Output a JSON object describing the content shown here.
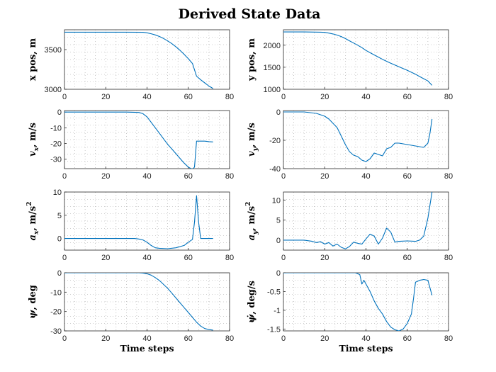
{
  "figure": {
    "title": "Derived State Data"
  },
  "chart_data": [
    {
      "id": "xpos",
      "type": "line",
      "ylabel": "x pos, m",
      "xlabel": "",
      "xlim": [
        0,
        80
      ],
      "ylim": [
        3000,
        3750
      ],
      "xticks": [
        0,
        20,
        40,
        60,
        80
      ],
      "yticks": [
        3000,
        3500
      ],
      "grid": true,
      "series": [
        {
          "x": [
            0,
            10,
            20,
            30,
            38,
            40,
            42,
            44,
            46,
            48,
            50,
            52,
            54,
            56,
            58,
            60,
            62,
            64,
            66,
            68,
            70,
            72
          ],
          "y": [
            3720,
            3720,
            3720,
            3720,
            3718,
            3712,
            3700,
            3685,
            3665,
            3640,
            3610,
            3575,
            3535,
            3490,
            3440,
            3385,
            3325,
            3165,
            3120,
            3080,
            3040,
            3010
          ]
        }
      ]
    },
    {
      "id": "ypos",
      "type": "line",
      "ylabel": "y pos, m",
      "xlabel": "",
      "xlim": [
        0,
        80
      ],
      "ylim": [
        1000,
        2350
      ],
      "xticks": [
        0,
        20,
        40,
        60,
        80
      ],
      "yticks": [
        1000,
        1500,
        2000
      ],
      "grid": true,
      "series": [
        {
          "x": [
            0,
            10,
            18,
            20,
            22,
            24,
            26,
            28,
            30,
            32,
            34,
            36,
            38,
            40,
            42,
            44,
            46,
            48,
            50,
            52,
            54,
            56,
            58,
            60,
            62,
            64,
            66,
            68,
            70,
            72
          ],
          "y": [
            2300,
            2300,
            2295,
            2290,
            2275,
            2255,
            2230,
            2195,
            2150,
            2100,
            2050,
            2000,
            1945,
            1880,
            1830,
            1780,
            1730,
            1680,
            1635,
            1590,
            1550,
            1510,
            1470,
            1430,
            1385,
            1340,
            1290,
            1240,
            1190,
            1090
          ]
        }
      ]
    },
    {
      "id": "vx",
      "type": "line",
      "ylabel": "v_x, m/s",
      "ylabel_var": "v",
      "ylabel_sub": "x",
      "ylabel_unit": ", m/s",
      "xlabel": "",
      "xlim": [
        0,
        80
      ],
      "ylim": [
        -36,
        1
      ],
      "xticks": [
        0,
        20,
        40,
        60,
        80
      ],
      "yticks": [
        -30,
        -20,
        -10,
        0
      ],
      "grid": true,
      "series": [
        {
          "x": [
            0,
            10,
            20,
            30,
            36,
            38,
            40,
            42,
            44,
            46,
            48,
            50,
            52,
            54,
            56,
            58,
            60,
            62,
            63,
            64,
            66,
            68,
            70,
            72
          ],
          "y": [
            0,
            0,
            0,
            0,
            -0.2,
            -1,
            -3,
            -6.5,
            -10,
            -13.5,
            -17,
            -20.5,
            -23.5,
            -26.5,
            -29.5,
            -32.5,
            -35,
            -36.5,
            -35,
            -18.5,
            -18.5,
            -18.5,
            -18.8,
            -19
          ]
        }
      ]
    },
    {
      "id": "vy",
      "type": "line",
      "ylabel": "v_y, m/s",
      "ylabel_var": "v",
      "ylabel_sub": "y",
      "ylabel_unit": ", m/s",
      "xlabel": "",
      "xlim": [
        0,
        80
      ],
      "ylim": [
        -40,
        1
      ],
      "xticks": [
        0,
        20,
        40,
        60,
        80
      ],
      "yticks": [
        -40,
        -20,
        0
      ],
      "grid": true,
      "series": [
        {
          "x": [
            0,
            10,
            16,
            20,
            22,
            24,
            26,
            28,
            30,
            32,
            34,
            36,
            38,
            40,
            42,
            44,
            46,
            48,
            50,
            52,
            54,
            56,
            60,
            64,
            68,
            70,
            71,
            72
          ],
          "y": [
            0,
            0,
            -1,
            -3,
            -5,
            -8,
            -11,
            -17,
            -23,
            -28,
            -30.5,
            -31.5,
            -34,
            -35,
            -33,
            -29,
            -30,
            -31,
            -26,
            -25,
            -22,
            -22,
            -23,
            -24,
            -25,
            -22,
            -15,
            -5
          ]
        }
      ]
    },
    {
      "id": "ax",
      "type": "line",
      "ylabel": "a_x, m/s^2",
      "ylabel_var": "a",
      "ylabel_sub": "x",
      "ylabel_unit": ", m/s",
      "ylabel_sup": "2",
      "xlabel": "",
      "xlim": [
        0,
        80
      ],
      "ylim": [
        -2.5,
        10
      ],
      "xticks": [
        0,
        20,
        40,
        60,
        80
      ],
      "yticks": [
        0,
        5,
        10
      ],
      "grid": true,
      "series": [
        {
          "x": [
            0,
            10,
            20,
            30,
            34,
            36,
            38,
            40,
            42,
            44,
            46,
            50,
            54,
            58,
            60,
            62,
            63,
            64,
            65,
            66,
            68,
            70,
            72
          ],
          "y": [
            0,
            0,
            0,
            0,
            0,
            -0.1,
            -0.3,
            -0.8,
            -1.5,
            -2.0,
            -2.1,
            -2.2,
            -2.0,
            -1.5,
            -0.8,
            -0.2,
            3.5,
            9.2,
            3.5,
            0,
            0,
            0,
            0
          ]
        }
      ]
    },
    {
      "id": "ay",
      "type": "line",
      "ylabel": "a_y, m/s^2",
      "ylabel_var": "a",
      "ylabel_sub": "y",
      "ylabel_unit": ", m/s",
      "ylabel_sup": "2",
      "xlabel": "",
      "xlim": [
        0,
        80
      ],
      "ylim": [
        -2.5,
        12
      ],
      "xticks": [
        0,
        20,
        40,
        60,
        80
      ],
      "yticks": [
        0,
        5,
        10
      ],
      "grid": true,
      "series": [
        {
          "x": [
            0,
            10,
            14,
            16,
            18,
            20,
            22,
            24,
            26,
            28,
            30,
            32,
            34,
            36,
            38,
            40,
            42,
            44,
            46,
            48,
            50,
            52,
            54,
            56,
            60,
            64,
            66,
            68,
            70,
            72
          ],
          "y": [
            0,
            0,
            -0.3,
            -0.6,
            -0.4,
            -1.0,
            -0.6,
            -1.5,
            -1.0,
            -1.8,
            -2.2,
            -1.6,
            -0.5,
            -0.8,
            -1.0,
            0.3,
            1.5,
            1.0,
            -1.0,
            0.5,
            3.0,
            2.0,
            -0.5,
            -0.3,
            -0.2,
            -0.3,
            0,
            1.0,
            5.5,
            12
          ]
        }
      ]
    },
    {
      "id": "psi",
      "type": "line",
      "ylabel": "ψ, deg",
      "ylabel_var": "ψ",
      "ylabel_unit": ", deg",
      "xlabel": "Time steps",
      "xlim": [
        0,
        80
      ],
      "ylim": [
        -30,
        0
      ],
      "xticks": [
        0,
        20,
        40,
        60,
        80
      ],
      "yticks": [
        -30,
        -20,
        -10,
        0
      ],
      "grid": true,
      "series": [
        {
          "x": [
            0,
            10,
            20,
            30,
            36,
            38,
            40,
            42,
            44,
            46,
            48,
            50,
            52,
            54,
            56,
            58,
            60,
            62,
            64,
            66,
            68,
            70,
            72
          ],
          "y": [
            0,
            0,
            0,
            0,
            0,
            -0.1,
            -0.5,
            -1.2,
            -2.5,
            -4,
            -6,
            -8,
            -10.5,
            -13,
            -15.5,
            -18,
            -20.5,
            -23,
            -25.5,
            -27.5,
            -28.8,
            -29.3,
            -29.6
          ]
        }
      ]
    },
    {
      "id": "psidot",
      "type": "line",
      "ylabel": "ψ̇, deg/s",
      "ylabel_var": "ψ̇",
      "ylabel_unit": ", deg/s",
      "xlabel": "Time steps",
      "xlim": [
        0,
        80
      ],
      "ylim": [
        -1.55,
        0
      ],
      "xticks": [
        0,
        20,
        40,
        60,
        80
      ],
      "yticks": [
        -1.5,
        -1,
        -0.5,
        0
      ],
      "grid": true,
      "series": [
        {
          "x": [
            0,
            10,
            20,
            30,
            35,
            37,
            38,
            39,
            40,
            42,
            44,
            46,
            48,
            50,
            52,
            54,
            56,
            58,
            60,
            62,
            63,
            64,
            66,
            68,
            70,
            71,
            72
          ],
          "y": [
            0,
            0,
            0,
            0,
            0,
            -0.05,
            -0.3,
            -0.2,
            -0.3,
            -0.5,
            -0.75,
            -0.95,
            -1.1,
            -1.3,
            -1.45,
            -1.52,
            -1.55,
            -1.5,
            -1.35,
            -1.1,
            -0.7,
            -0.25,
            -0.2,
            -0.18,
            -0.2,
            -0.4,
            -0.6
          ]
        }
      ]
    }
  ]
}
